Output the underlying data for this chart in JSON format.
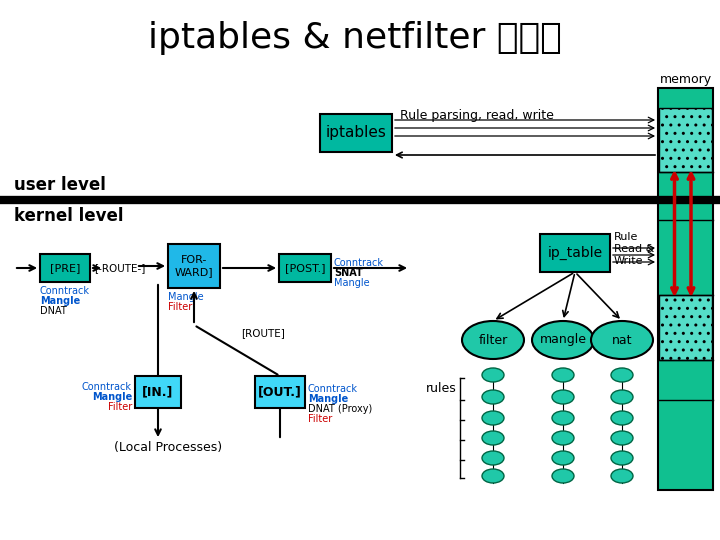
{
  "title": "iptables & netfilter 개념도",
  "title_fontsize": 26,
  "bg_color": "#ffffff",
  "teal": "#00b8a0",
  "cyan_fwd": "#20b8e8",
  "cyan_in": "#40d8f8",
  "cyan_out": "#40d8f8",
  "mem_color": "#10c090",
  "red_arrow": "#cc0000",
  "black": "#000000",
  "blue_text": "#0055cc",
  "red_text": "#cc0000",
  "user_label": "user level",
  "kernel_label": "kernel level",
  "iptables_label": "iptables",
  "memory_label": "memory",
  "ip_table_label": "ip_table",
  "filter_label": "filter",
  "mangle_label": "mangle",
  "nat_label": "nat",
  "rules_label": "rules",
  "pre_label": "[PRE]",
  "route1_label": "[-ROUTE-]",
  "forward_label": "FOR-\nWARD]",
  "post_label": "[POST.]",
  "input_label": "[IN.]",
  "output_label": "[OUT.]",
  "local_label": "(Local Processes)",
  "route2_label": "[ROUTE]",
  "rule_parse_label": "Rule parsing, read, write"
}
